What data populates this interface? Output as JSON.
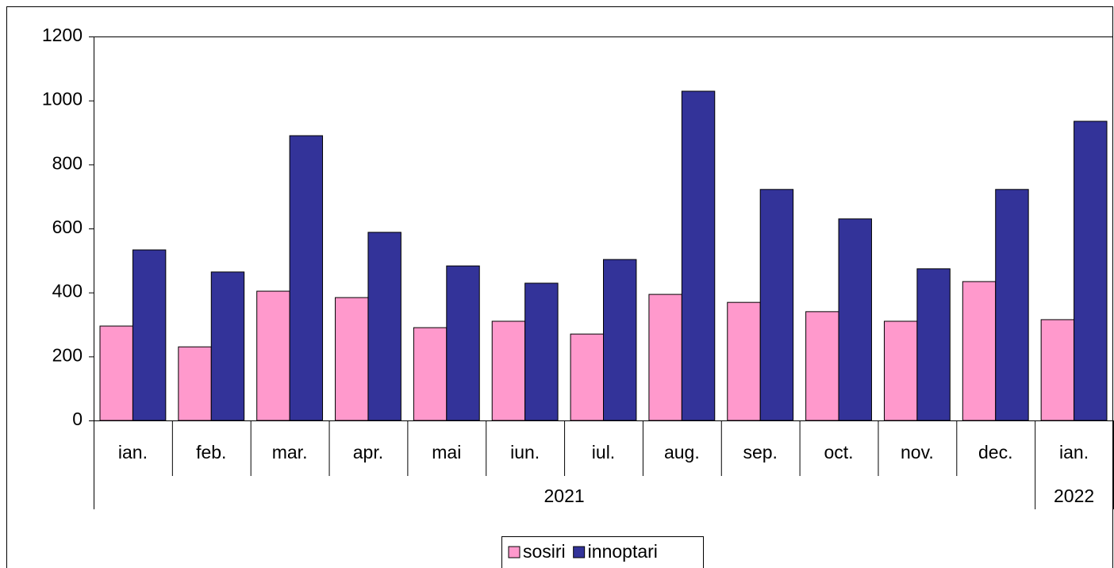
{
  "chart_data": {
    "type": "bar",
    "categories": [
      "ian.",
      "feb.",
      "mar.",
      "apr.",
      "mai",
      "iun.",
      "iul.",
      "aug.",
      "sep.",
      "oct.",
      "nov.",
      "dec.",
      "ian."
    ],
    "years": [
      "2021",
      "2021",
      "2021",
      "2021",
      "2021",
      "2021",
      "2021",
      "2021",
      "2021",
      "2021",
      "2021",
      "2021",
      "2022"
    ],
    "series": [
      {
        "name": "sosiri",
        "color": "#ff99cc",
        "values": [
          295,
          230,
          404,
          384,
          290,
          310,
          270,
          394,
          369,
          340,
          310,
          434,
          315
        ]
      },
      {
        "name": "innoptari",
        "color": "#333399",
        "values": [
          533,
          464,
          890,
          588,
          483,
          429,
          503,
          1029,
          722,
          630,
          474,
          722,
          935
        ]
      }
    ],
    "ylim": [
      0,
      1200
    ],
    "yticks": [
      0,
      200,
      400,
      600,
      800,
      1000,
      1200
    ],
    "legend": "bottom"
  }
}
